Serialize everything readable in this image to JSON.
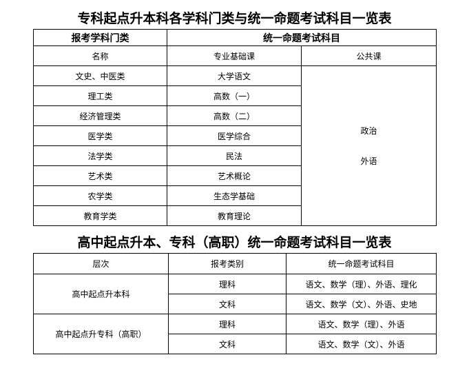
{
  "table1": {
    "title": "专科起点升本科各学科门类与统一命题考试科目一览表",
    "group_headers": [
      "报考学科门类",
      "统一命题考试科目"
    ],
    "sub_headers": [
      "名称",
      "专业基础课",
      "公共课"
    ],
    "rows": [
      {
        "name": "文史、中医类",
        "basic": "大学语文"
      },
      {
        "name": "理工类",
        "basic": "高数（一）"
      },
      {
        "name": "经济管理类",
        "basic": "高数（二）"
      },
      {
        "name": "医学类",
        "basic": "医学综合"
      },
      {
        "name": "法学类",
        "basic": "民法"
      },
      {
        "name": "艺术类",
        "basic": "艺术概论"
      },
      {
        "name": "农学类",
        "basic": "生态学基础"
      },
      {
        "name": "教育学类",
        "basic": "教育理论"
      }
    ],
    "public_courses": [
      "政治",
      "外语"
    ]
  },
  "table2": {
    "title": "高中起点升本、专科（高职）统一命题考试科目一览表",
    "headers": [
      "层次",
      "报考类别",
      "统一命题考试科目"
    ],
    "levels": [
      {
        "level": "高中起点升本科",
        "items": [
          {
            "category": "理科",
            "subjects": "语文、数学（理）、外语、理化"
          },
          {
            "category": "文科",
            "subjects": "语文、数学（文）、外语、史地"
          }
        ]
      },
      {
        "level": "高中起点升专科（高职）",
        "items": [
          {
            "category": "理科",
            "subjects": "语文、数学（理）、外语"
          },
          {
            "category": "文科",
            "subjects": "语文、数学（文）、外语"
          }
        ]
      }
    ]
  }
}
